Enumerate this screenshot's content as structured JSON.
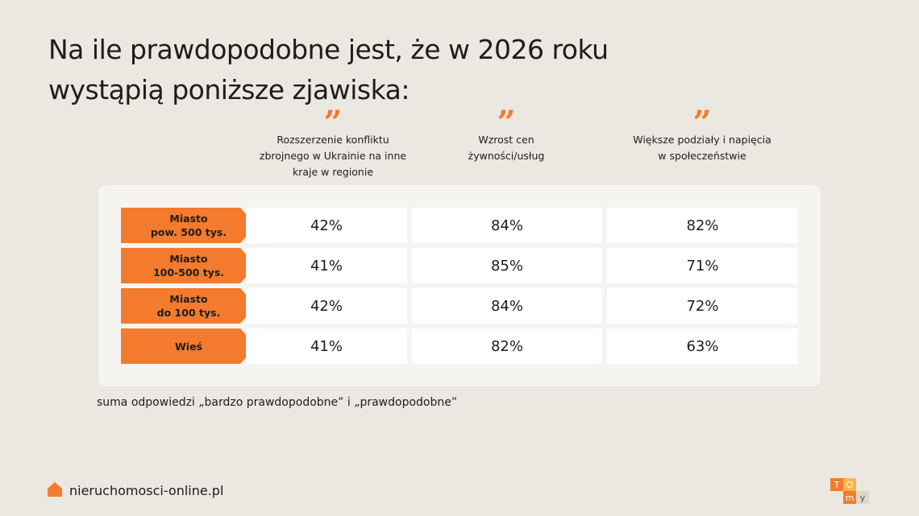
{
  "title": [
    "Na ile prawdopodobne jest, że w 2026 roku",
    "wystąpią poniższe zjawiska:"
  ],
  "table": {
    "columns": [
      [
        "Rozszerzenie konfliktu",
        "zbrojnego w Ukrainie na inne",
        "kraje w regionie"
      ],
      [
        "Wzrost cen",
        "żywności/usług"
      ],
      [
        "Większe podziały i napięcia",
        "w społeczeństwie"
      ]
    ],
    "row_labels": [
      [
        "Miasto",
        "pow. 500 tys."
      ],
      [
        "Miasto",
        "100-500 tys."
      ],
      [
        "Miasto",
        "do 100 tys."
      ],
      [
        "Wieś"
      ]
    ],
    "rows": [
      [
        "42%",
        "84%",
        "82%"
      ],
      [
        "41%",
        "85%",
        "71%"
      ],
      [
        "42%",
        "84%",
        "72%"
      ],
      [
        "41%",
        "82%",
        "63%"
      ]
    ]
  },
  "footnote": "suma odpowiedzi „bardzo prawdopodobne” i „prawdopodobne”",
  "brand": "nieruchomosci-online.pl",
  "logo_letters": [
    "T",
    "O",
    "m",
    "y"
  ]
}
